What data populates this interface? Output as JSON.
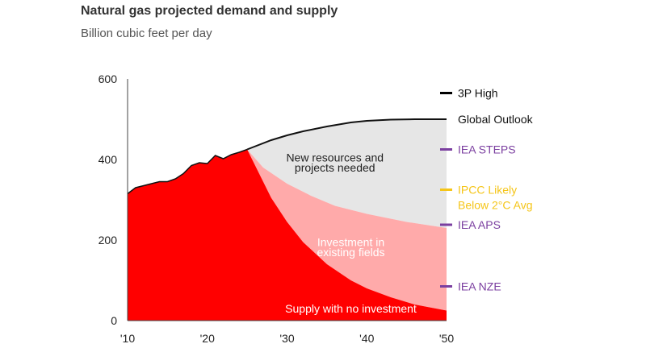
{
  "header": {
    "title": "Natural gas projected demand and supply",
    "subtitle": "Billion cubic feet per day"
  },
  "chart_data": {
    "type": "area",
    "title": "Natural gas projected demand and supply",
    "subtitle": "Billion cubic feet per day",
    "ylim": [
      0,
      600
    ],
    "xlim": [
      2010,
      2050
    ],
    "y_ticks": [
      0,
      200,
      400,
      600
    ],
    "y_tick_labels": [
      "0",
      "200",
      "400",
      "600"
    ],
    "x_ticks": [
      2010,
      2020,
      2030,
      2040,
      2050
    ],
    "x_tick_labels": [
      "'10",
      "'20",
      "'30",
      "'40",
      "'50"
    ],
    "grid": false,
    "series": [
      {
        "name": "Global Outlook",
        "kind": "line",
        "color": "#111111",
        "x": [
          2025,
          2028,
          2030,
          2032,
          2035,
          2038,
          2040,
          2043,
          2046,
          2050
        ],
        "y": [
          425,
          448,
          460,
          470,
          482,
          492,
          496,
          499,
          500,
          500
        ]
      },
      {
        "name": "Investment in existing fields",
        "kind": "area",
        "color": "#ffaaaa",
        "x": [
          2025,
          2027,
          2030,
          2033,
          2036,
          2040,
          2045,
          2050
        ],
        "y": [
          425,
          380,
          340,
          310,
          285,
          265,
          245,
          230
        ]
      },
      {
        "name": "Supply with no investment",
        "kind": "area",
        "color": "#ff0000",
        "x": [
          2010,
          2011,
          2012,
          2013,
          2014,
          2015,
          2016,
          2017,
          2018,
          2019,
          2020,
          2021,
          2022,
          2023,
          2024,
          2025,
          2026,
          2027,
          2028,
          2030,
          2032,
          2035,
          2038,
          2040,
          2043,
          2046,
          2050
        ],
        "y": [
          315,
          330,
          335,
          340,
          345,
          345,
          352,
          365,
          385,
          392,
          390,
          410,
          402,
          412,
          418,
          425,
          385,
          345,
          305,
          245,
          195,
          140,
          100,
          80,
          58,
          40,
          25
        ]
      }
    ],
    "area_labels": [
      {
        "text": [
          "New resources and",
          "projects needed"
        ],
        "x": 2036,
        "y": [
          395,
          370
        ]
      },
      {
        "text": [
          "Investment in",
          "existing fields"
        ],
        "x": 2038,
        "y": [
          185,
          160
        ]
      },
      {
        "text": [
          "Supply with no investment"
        ],
        "x": 2038,
        "y": [
          20
        ]
      }
    ],
    "scenario_markers": [
      {
        "label": [
          "3P High"
        ],
        "value": 565,
        "color": "#000000",
        "text_color": "#111111"
      },
      {
        "label": [
          "Global Outlook"
        ],
        "value": 500,
        "color": "#000000",
        "text_color": "#111111",
        "no_marker": true
      },
      {
        "label": [
          "IEA STEPS"
        ],
        "value": 425,
        "color": "#7b3fa0",
        "text_color": "#7b3fa0"
      },
      {
        "label": [
          "IPCC Likely",
          "Below 2°C Avg"
        ],
        "value": 325,
        "color": "#f5c518",
        "text_color": "#f5c518"
      },
      {
        "label": [
          "IEA APS"
        ],
        "value": 238,
        "color": "#7b3fa0",
        "text_color": "#7b3fa0"
      },
      {
        "label": [
          "IEA NZE"
        ],
        "value": 85,
        "color": "#7b3fa0",
        "text_color": "#7b3fa0"
      }
    ]
  }
}
